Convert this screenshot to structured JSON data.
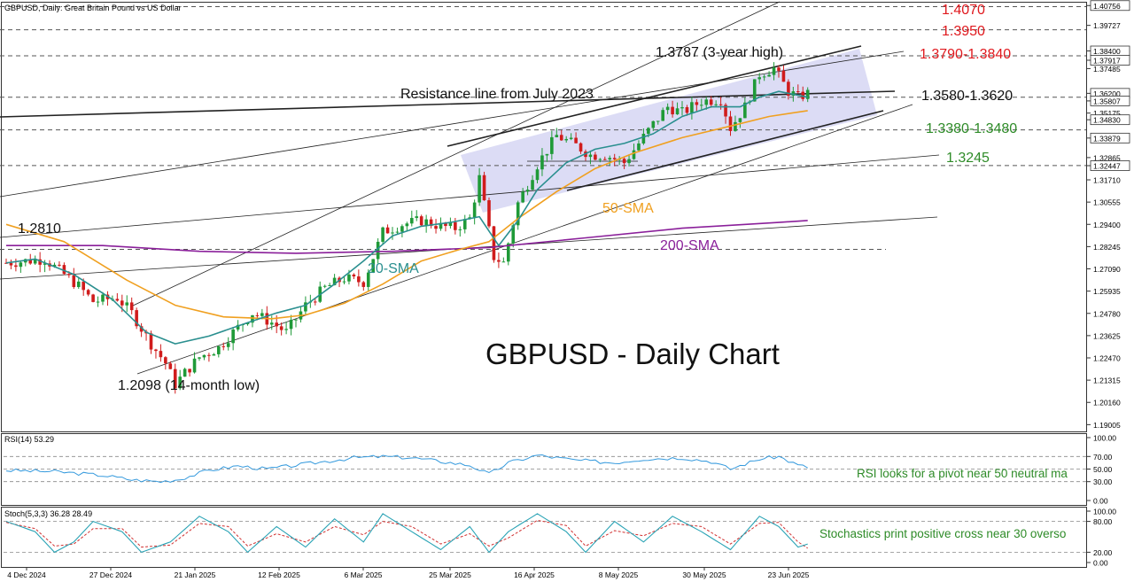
{
  "header": {
    "title": "GBPUSD, Daily:  Great Britain Pound vs US Dollar"
  },
  "colors": {
    "bull": "#1f9a38",
    "bear": "#d01c1c",
    "sma20": "#2a8f8f",
    "sma50": "#f0a020",
    "sma200": "#8a1f9a",
    "resistance": "#e0191e",
    "support": "#2e8b28",
    "rsi": "#3399dd",
    "stoch_main": "#2aa3b5",
    "stoch_signal": "#d03030",
    "channel_fill": "#d8d8f4"
  },
  "x_axis": {
    "dates": [
      "4 Dec 2024",
      "27 Dec 2024",
      "21 Jan 2025",
      "12 Feb 2025",
      "6 Mar 2025",
      "25 Mar 2025",
      "16 Apr 2025",
      "8 May 2025",
      "30 May 2025",
      "23 Jun 2025"
    ]
  },
  "price_axis": {
    "ticks": [
      "1.40756",
      "1.39727",
      "1.38400",
      "1.37917",
      "1.37485",
      "1.36200",
      "1.35807",
      "1.35175",
      "1.34830",
      "1.33879",
      "1.32865",
      "1.32447",
      "1.31710",
      "1.30555",
      "1.29400",
      "1.28245",
      "1.27090",
      "1.25935",
      "1.24780",
      "1.23625",
      "1.22470",
      "1.21315",
      "1.20160",
      "1.19005"
    ],
    "highlighted": [
      "1.40756",
      "1.38400",
      "1.37917",
      "1.36200",
      "1.35807",
      "1.34830",
      "1.33879",
      "1.32447"
    ]
  },
  "rsi_panel": {
    "label": "RSI(14) 53.29",
    "ticks": [
      "100.00",
      "70.00",
      "50.00",
      "30.00",
      "0.00"
    ]
  },
  "stoch_panel": {
    "label": "Stoch(5,3,3) 36.28 28.49",
    "ticks": [
      "100.00",
      "80.00",
      "20.00",
      "0.00"
    ]
  },
  "annotations": {
    "chart_title": "GBPUSD - Daily Chart",
    "level_1_4070": "1.4070",
    "level_1_3950": "1.3950",
    "level_1_3790_1_3840": "1.3790-1.3840",
    "level_1_3580_1_3620": "1.3580-1.3620",
    "level_1_3380_1_3480": "1.3380-1.3480",
    "level_1_3245": "1.3245",
    "three_year_high": "1.3787 (3-year high)",
    "resistance_line": "Resistance line from July 2023",
    "level_1_2810": "1.2810",
    "fourteen_month_low": "1.2098 (14-month low)",
    "sma20_label": "20-SMA",
    "sma50_label": "50-SMA",
    "sma200_label": "200-SMA",
    "rsi_note": "RSI looks for a pivot near 50 neutral ma",
    "stoch_note": "Stochastics print positive cross near 30 overso"
  },
  "chart_data": {
    "type": "candlestick",
    "title": "GBPUSD - Daily Chart",
    "price_ylim": [
      1.187,
      1.4086
    ],
    "dates": [
      "4 Dec 2024",
      "27 Dec 2024",
      "21 Jan 2025",
      "12 Feb 2025",
      "6 Mar 2025",
      "25 Mar 2025",
      "16 Apr 2025",
      "8 May 2025",
      "30 May 2025",
      "23 Jun 2025"
    ],
    "price_path": [
      [
        0,
        1.274
      ],
      [
        8,
        1.276
      ],
      [
        15,
        1.262
      ],
      [
        18,
        1.254
      ],
      [
        23,
        1.256
      ],
      [
        26,
        1.248
      ],
      [
        30,
        1.232
      ],
      [
        33,
        1.222
      ],
      [
        35,
        1.211
      ],
      [
        37,
        1.217
      ],
      [
        40,
        1.225
      ],
      [
        44,
        1.23
      ],
      [
        47,
        1.238
      ],
      [
        51,
        1.248
      ],
      [
        55,
        1.243
      ],
      [
        58,
        1.238
      ],
      [
        62,
        1.252
      ],
      [
        66,
        1.261
      ],
      [
        70,
        1.266
      ],
      [
        74,
        1.264
      ],
      [
        78,
        1.29
      ],
      [
        82,
        1.294
      ],
      [
        86,
        1.296
      ],
      [
        90,
        1.293
      ],
      [
        93,
        1.292
      ],
      [
        96,
        1.297
      ],
      [
        98,
        1.318
      ],
      [
        101,
        1.277
      ],
      [
        103,
        1.274
      ],
      [
        106,
        1.305
      ],
      [
        110,
        1.325
      ],
      [
        114,
        1.34
      ],
      [
        118,
        1.335
      ],
      [
        121,
        1.33
      ],
      [
        124,
        1.33
      ],
      [
        128,
        1.326
      ],
      [
        131,
        1.336
      ],
      [
        134,
        1.346
      ],
      [
        137,
        1.355
      ],
      [
        140,
        1.352
      ],
      [
        144,
        1.358
      ],
      [
        148,
        1.359
      ],
      [
        150,
        1.344
      ],
      [
        153,
        1.355
      ],
      [
        156,
        1.372
      ],
      [
        159,
        1.375
      ],
      [
        162,
        1.363
      ],
      [
        164,
        1.36
      ],
      [
        166,
        1.362
      ]
    ],
    "sma20": [
      [
        0,
        1.274
      ],
      [
        6,
        1.276
      ],
      [
        14,
        1.268
      ],
      [
        22,
        1.255
      ],
      [
        29,
        1.238
      ],
      [
        35,
        1.232
      ],
      [
        42,
        1.236
      ],
      [
        50,
        1.243
      ],
      [
        56,
        1.248
      ],
      [
        62,
        1.252
      ],
      [
        68,
        1.263
      ],
      [
        74,
        1.275
      ],
      [
        80,
        1.288
      ],
      [
        86,
        1.293
      ],
      [
        92,
        1.295
      ],
      [
        98,
        1.298
      ],
      [
        102,
        1.283
      ],
      [
        106,
        1.296
      ],
      [
        110,
        1.312
      ],
      [
        116,
        1.326
      ],
      [
        122,
        1.333
      ],
      [
        128,
        1.336
      ],
      [
        134,
        1.341
      ],
      [
        140,
        1.35
      ],
      [
        146,
        1.355
      ],
      [
        152,
        1.355
      ],
      [
        156,
        1.36
      ],
      [
        160,
        1.363
      ],
      [
        164,
        1.361
      ],
      [
        166,
        1.36
      ]
    ],
    "sma50": [
      [
        0,
        1.294
      ],
      [
        12,
        1.285
      ],
      [
        25,
        1.265
      ],
      [
        35,
        1.252
      ],
      [
        45,
        1.246
      ],
      [
        55,
        1.245
      ],
      [
        62,
        1.247
      ],
      [
        70,
        1.253
      ],
      [
        78,
        1.263
      ],
      [
        86,
        1.275
      ],
      [
        94,
        1.281
      ],
      [
        100,
        1.285
      ],
      [
        106,
        1.297
      ],
      [
        114,
        1.311
      ],
      [
        122,
        1.323
      ],
      [
        130,
        1.331
      ],
      [
        140,
        1.339
      ],
      [
        150,
        1.345
      ],
      [
        158,
        1.35
      ],
      [
        166,
        1.353
      ]
    ],
    "sma200": [
      [
        0,
        1.283
      ],
      [
        20,
        1.283
      ],
      [
        40,
        1.28
      ],
      [
        60,
        1.279
      ],
      [
        80,
        1.28
      ],
      [
        100,
        1.282
      ],
      [
        120,
        1.287
      ],
      [
        140,
        1.292
      ],
      [
        160,
        1.295
      ],
      [
        166,
        1.296
      ]
    ],
    "levels": [
      {
        "name": "1.4070",
        "value": 1.407,
        "color": "resistance"
      },
      {
        "name": "1.3950",
        "value": 1.395,
        "color": "resistance"
      },
      {
        "name": "1.3790-1.3840",
        "value": 1.3815,
        "color": "resistance"
      },
      {
        "name": "1.3580-1.3620",
        "value": 1.36,
        "color": "black"
      },
      {
        "name": "1.3380-1.3480",
        "value": 1.343,
        "color": "support"
      },
      {
        "name": "1.3245",
        "value": 1.3245,
        "color": "support"
      },
      {
        "name": "1.2810",
        "value": 1.281,
        "color": "black"
      }
    ],
    "rsi": {
      "value": 53.29,
      "ylim": [
        0,
        100
      ],
      "levels": [
        70,
        50,
        30
      ],
      "path": [
        [
          0,
          48
        ],
        [
          10,
          46
        ],
        [
          20,
          40
        ],
        [
          26,
          33
        ],
        [
          32,
          30
        ],
        [
          36,
          34
        ],
        [
          42,
          48
        ],
        [
          48,
          55
        ],
        [
          54,
          50
        ],
        [
          60,
          56
        ],
        [
          66,
          62
        ],
        [
          72,
          68
        ],
        [
          78,
          70
        ],
        [
          84,
          68
        ],
        [
          90,
          62
        ],
        [
          96,
          56
        ],
        [
          100,
          42
        ],
        [
          104,
          60
        ],
        [
          110,
          72
        ],
        [
          118,
          64
        ],
        [
          126,
          60
        ],
        [
          132,
          66
        ],
        [
          140,
          68
        ],
        [
          146,
          62
        ],
        [
          150,
          50
        ],
        [
          156,
          66
        ],
        [
          160,
          70
        ],
        [
          164,
          56
        ],
        [
          166,
          53
        ]
      ]
    },
    "stochastic": {
      "k": 36.28,
      "d": 28.49,
      "ylim": [
        0,
        100
      ],
      "levels": [
        80,
        20
      ],
      "k_path": [
        [
          0,
          80
        ],
        [
          6,
          60
        ],
        [
          10,
          20
        ],
        [
          14,
          40
        ],
        [
          18,
          80
        ],
        [
          24,
          60
        ],
        [
          28,
          20
        ],
        [
          34,
          40
        ],
        [
          40,
          90
        ],
        [
          46,
          60
        ],
        [
          50,
          20
        ],
        [
          56,
          70
        ],
        [
          62,
          30
        ],
        [
          68,
          85
        ],
        [
          74,
          40
        ],
        [
          78,
          95
        ],
        [
          84,
          60
        ],
        [
          90,
          25
        ],
        [
          96,
          70
        ],
        [
          100,
          20
        ],
        [
          104,
          60
        ],
        [
          110,
          95
        ],
        [
          116,
          60
        ],
        [
          120,
          20
        ],
        [
          126,
          80
        ],
        [
          132,
          40
        ],
        [
          138,
          90
        ],
        [
          144,
          60
        ],
        [
          150,
          25
        ],
        [
          156,
          90
        ],
        [
          160,
          70
        ],
        [
          164,
          30
        ],
        [
          166,
          36
        ]
      ],
      "d_path": [
        [
          0,
          78
        ],
        [
          6,
          66
        ],
        [
          10,
          32
        ],
        [
          14,
          36
        ],
        [
          18,
          66
        ],
        [
          24,
          66
        ],
        [
          28,
          30
        ],
        [
          34,
          34
        ],
        [
          40,
          76
        ],
        [
          46,
          70
        ],
        [
          50,
          32
        ],
        [
          56,
          56
        ],
        [
          62,
          40
        ],
        [
          68,
          70
        ],
        [
          74,
          54
        ],
        [
          78,
          80
        ],
        [
          84,
          70
        ],
        [
          90,
          36
        ],
        [
          96,
          56
        ],
        [
          100,
          32
        ],
        [
          104,
          48
        ],
        [
          110,
          82
        ],
        [
          116,
          72
        ],
        [
          120,
          32
        ],
        [
          126,
          62
        ],
        [
          132,
          52
        ],
        [
          138,
          76
        ],
        [
          144,
          70
        ],
        [
          150,
          36
        ],
        [
          156,
          76
        ],
        [
          160,
          78
        ],
        [
          164,
          40
        ],
        [
          166,
          28
        ]
      ]
    }
  }
}
